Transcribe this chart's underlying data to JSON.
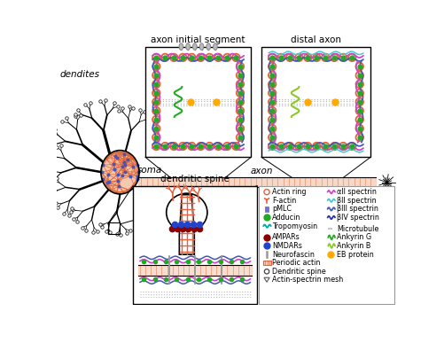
{
  "bg_color": "#ffffff",
  "labels": {
    "dendrites": "dendites",
    "soma": "soma",
    "axon": "axon",
    "axon_initial": "axon initial segment",
    "distal_axon": "distal axon",
    "dendritic_spine": "dendritic spine"
  },
  "colors": {
    "actin_ring": "#e8603c",
    "spectrin_purple": "#cc44cc",
    "spectrin_cyan": "#44cccc",
    "spectrin_blue": "#4455bb",
    "spectrin_dkblue": "#2233aa",
    "adducin": "#22aa22",
    "ankyrin_g": "#22aa22",
    "ankyrin_b": "#88cc22",
    "eb_protein": "#ffaa00",
    "microtubule": "#bbbbbb",
    "neurofascin": "#999999",
    "tropomyosin": "#00aaaa",
    "pmls": "#7070d0",
    "ampars": "#8b0000",
    "nmdars": "#2244cc",
    "soma_fill": "#f5c8b0",
    "soma_mesh": "#e06030",
    "soma_dots": "#4455bb",
    "axon_fill": "#f5c8b0",
    "axon_ring": "#e06030"
  }
}
